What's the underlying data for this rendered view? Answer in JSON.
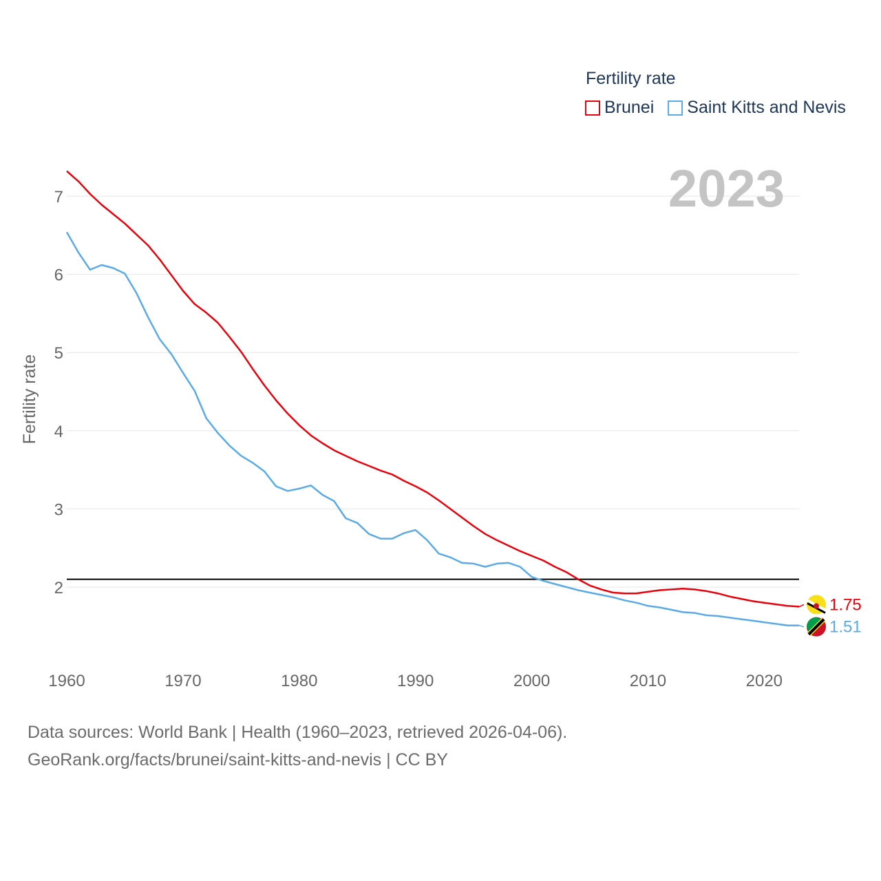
{
  "legend": {
    "title": "Fertility rate",
    "items": [
      {
        "label": "Brunei",
        "color": "#e8000b"
      },
      {
        "label": "Saint Kitts and Nevis",
        "color": "#5aaae6"
      }
    ]
  },
  "footer": {
    "line1": "Data sources: World Bank | Health (1960–2023, retrieved 2026-04-06).",
    "line2": "GeoRank.org/facts/brunei/saint-kitts-and-nevis | CC BY"
  },
  "chart_data": {
    "type": "line",
    "year_label": "2023",
    "ylabel": "Fertility rate",
    "xlabel": "",
    "xlim": [
      1960,
      2023
    ],
    "ylim": [
      1.0,
      7.5
    ],
    "xticks": [
      1960,
      1970,
      1980,
      1990,
      2000,
      2010,
      2020
    ],
    "yticks": [
      2,
      3,
      4,
      5,
      6,
      7
    ],
    "reference_line": 2.1,
    "x": [
      1960,
      1961,
      1962,
      1963,
      1964,
      1965,
      1966,
      1967,
      1968,
      1969,
      1970,
      1971,
      1972,
      1973,
      1974,
      1975,
      1976,
      1977,
      1978,
      1979,
      1980,
      1981,
      1982,
      1983,
      1984,
      1985,
      1986,
      1987,
      1988,
      1989,
      1990,
      1991,
      1992,
      1993,
      1994,
      1995,
      1996,
      1997,
      1998,
      1999,
      2000,
      2001,
      2002,
      2003,
      2004,
      2005,
      2006,
      2007,
      2008,
      2009,
      2010,
      2011,
      2012,
      2013,
      2014,
      2015,
      2016,
      2017,
      2018,
      2019,
      2020,
      2021,
      2022,
      2023
    ],
    "series": [
      {
        "name": "Brunei",
        "color": "#e8000b",
        "end_label": "1.75",
        "values": [
          7.32,
          7.19,
          7.03,
          6.89,
          6.77,
          6.65,
          6.51,
          6.37,
          6.19,
          5.99,
          5.79,
          5.62,
          5.51,
          5.38,
          5.2,
          5.01,
          4.79,
          4.58,
          4.39,
          4.22,
          4.07,
          3.94,
          3.84,
          3.75,
          3.68,
          3.61,
          3.55,
          3.49,
          3.44,
          3.36,
          3.29,
          3.21,
          3.11,
          3.0,
          2.89,
          2.78,
          2.68,
          2.6,
          2.53,
          2.46,
          2.4,
          2.34,
          2.26,
          2.19,
          2.1,
          2.02,
          1.97,
          1.93,
          1.92,
          1.92,
          1.94,
          1.96,
          1.97,
          1.98,
          1.97,
          1.95,
          1.92,
          1.88,
          1.85,
          1.82,
          1.8,
          1.78,
          1.76,
          1.75
        ]
      },
      {
        "name": "Saint Kitts and Nevis",
        "color": "#5aaae6",
        "end_label": "1.51",
        "values": [
          6.54,
          6.28,
          6.06,
          6.12,
          6.08,
          6.01,
          5.76,
          5.45,
          5.17,
          4.98,
          4.74,
          4.51,
          4.16,
          3.97,
          3.81,
          3.68,
          3.59,
          3.48,
          3.29,
          3.23,
          3.26,
          3.3,
          3.18,
          3.1,
          2.88,
          2.82,
          2.68,
          2.62,
          2.62,
          2.69,
          2.73,
          2.6,
          2.43,
          2.38,
          2.31,
          2.3,
          2.26,
          2.3,
          2.31,
          2.26,
          2.13,
          2.08,
          2.04,
          2.0,
          1.96,
          1.93,
          1.9,
          1.87,
          1.83,
          1.8,
          1.76,
          1.74,
          1.71,
          1.68,
          1.67,
          1.64,
          1.63,
          1.61,
          1.59,
          1.57,
          1.55,
          1.53,
          1.51,
          1.51
        ]
      }
    ]
  }
}
